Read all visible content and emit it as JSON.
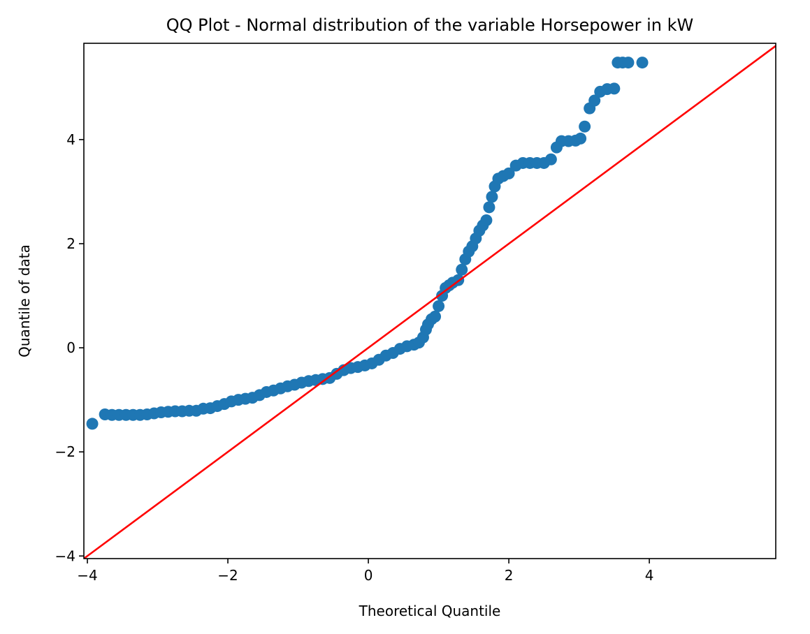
{
  "chart_data": {
    "type": "scatter",
    "title": "QQ Plot - Normal distribution of the variable Horsepower in kW",
    "xlabel": "Theoretical Quantile",
    "ylabel": "Quantile of data",
    "xlim": [
      -4.05,
      5.8
    ],
    "ylim": [
      -4.05,
      5.85
    ],
    "x_ticks": [
      -4,
      -2,
      0,
      2,
      4
    ],
    "y_ticks": [
      -4,
      -2,
      0,
      2,
      4
    ],
    "x_tick_labels": [
      "−4",
      "−2",
      "0",
      "2",
      "4"
    ],
    "y_tick_labels": [
      "−4",
      "−2",
      "0",
      "2",
      "4"
    ],
    "grid": false,
    "colors": {
      "points": "#1f77b4",
      "reference_line": "#ff0000"
    },
    "reference_line": {
      "x": [
        -4.05,
        5.8
      ],
      "y": [
        -4.05,
        5.8
      ]
    },
    "series": [
      {
        "values": [
          [
            -3.93,
            -1.46
          ],
          [
            -3.75,
            -1.28
          ],
          [
            -3.65,
            -1.29
          ],
          [
            -3.55,
            -1.29
          ],
          [
            -3.45,
            -1.29
          ],
          [
            -3.35,
            -1.29
          ],
          [
            -3.25,
            -1.29
          ],
          [
            -3.15,
            -1.28
          ],
          [
            -3.05,
            -1.26
          ],
          [
            -2.95,
            -1.24
          ],
          [
            -2.85,
            -1.23
          ],
          [
            -2.75,
            -1.22
          ],
          [
            -2.65,
            -1.22
          ],
          [
            -2.55,
            -1.21
          ],
          [
            -2.45,
            -1.21
          ],
          [
            -2.35,
            -1.17
          ],
          [
            -2.25,
            -1.16
          ],
          [
            -2.15,
            -1.12
          ],
          [
            -2.05,
            -1.08
          ],
          [
            -1.95,
            -1.03
          ],
          [
            -1.85,
            -1.0
          ],
          [
            -1.75,
            -0.98
          ],
          [
            -1.65,
            -0.96
          ],
          [
            -1.55,
            -0.91
          ],
          [
            -1.45,
            -0.85
          ],
          [
            -1.35,
            -0.82
          ],
          [
            -1.25,
            -0.78
          ],
          [
            -1.15,
            -0.74
          ],
          [
            -1.05,
            -0.71
          ],
          [
            -0.95,
            -0.67
          ],
          [
            -0.85,
            -0.64
          ],
          [
            -0.75,
            -0.62
          ],
          [
            -0.65,
            -0.6
          ],
          [
            -0.55,
            -0.58
          ],
          [
            -0.45,
            -0.5
          ],
          [
            -0.35,
            -0.43
          ],
          [
            -0.25,
            -0.39
          ],
          [
            -0.15,
            -0.37
          ],
          [
            -0.05,
            -0.34
          ],
          [
            0.05,
            -0.3
          ],
          [
            0.15,
            -0.23
          ],
          [
            0.25,
            -0.15
          ],
          [
            0.35,
            -0.1
          ],
          [
            0.45,
            -0.02
          ],
          [
            0.55,
            0.03
          ],
          [
            0.65,
            0.06
          ],
          [
            0.72,
            0.1
          ],
          [
            0.78,
            0.2
          ],
          [
            0.82,
            0.35
          ],
          [
            0.85,
            0.45
          ],
          [
            0.9,
            0.55
          ],
          [
            0.95,
            0.6
          ],
          [
            1.0,
            0.8
          ],
          [
            1.05,
            1.0
          ],
          [
            1.1,
            1.15
          ],
          [
            1.15,
            1.2
          ],
          [
            1.2,
            1.25
          ],
          [
            1.28,
            1.3
          ],
          [
            1.33,
            1.5
          ],
          [
            1.38,
            1.7
          ],
          [
            1.43,
            1.85
          ],
          [
            1.48,
            1.95
          ],
          [
            1.53,
            2.1
          ],
          [
            1.58,
            2.25
          ],
          [
            1.63,
            2.35
          ],
          [
            1.68,
            2.45
          ],
          [
            1.72,
            2.7
          ],
          [
            1.76,
            2.9
          ],
          [
            1.8,
            3.1
          ],
          [
            1.85,
            3.25
          ],
          [
            1.92,
            3.3
          ],
          [
            2.0,
            3.35
          ],
          [
            2.1,
            3.5
          ],
          [
            2.2,
            3.55
          ],
          [
            2.3,
            3.55
          ],
          [
            2.4,
            3.55
          ],
          [
            2.5,
            3.55
          ],
          [
            2.6,
            3.62
          ],
          [
            2.68,
            3.85
          ],
          [
            2.75,
            3.97
          ],
          [
            2.85,
            3.97
          ],
          [
            2.95,
            3.98
          ],
          [
            3.02,
            4.02
          ],
          [
            3.08,
            4.25
          ],
          [
            3.15,
            4.6
          ],
          [
            3.22,
            4.75
          ],
          [
            3.3,
            4.92
          ],
          [
            3.4,
            4.97
          ],
          [
            3.5,
            4.98
          ],
          [
            3.55,
            5.48
          ],
          [
            3.62,
            5.48
          ],
          [
            3.7,
            5.48
          ],
          [
            3.9,
            5.48
          ]
        ]
      }
    ]
  }
}
